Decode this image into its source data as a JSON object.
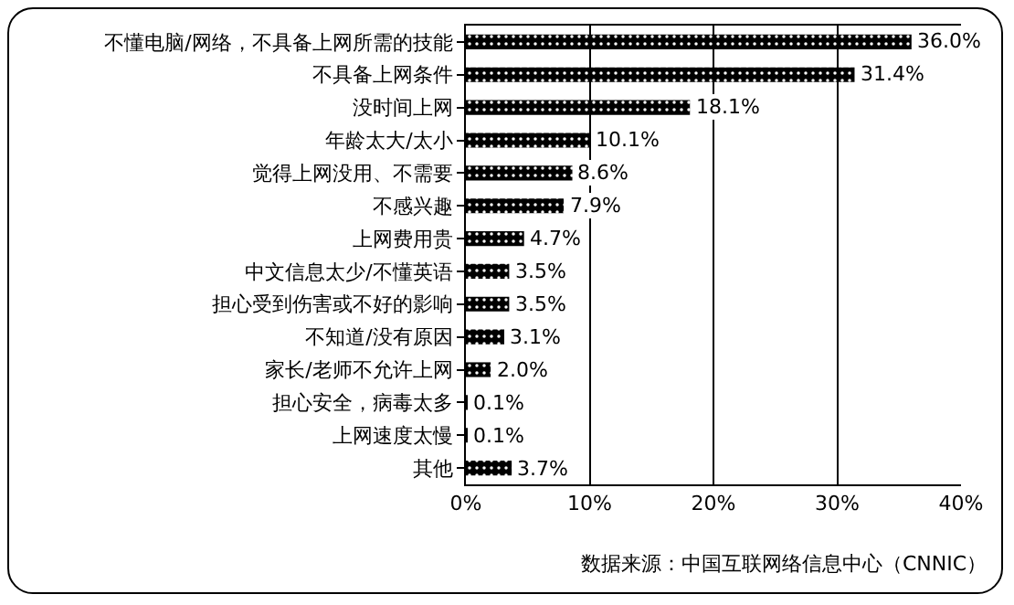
{
  "chart_data": {
    "type": "bar",
    "orientation": "horizontal",
    "categories": [
      "不懂电脑/网络，不具备上网所需的技能",
      "不具备上网条件",
      "没时间上网",
      "年龄太大/太小",
      "觉得上网没用、不需要",
      "不感兴趣",
      "上网费用贵",
      "中文信息太少/不懂英语",
      "担心受到伤害或不好的影响",
      "不知道/没有原因",
      "家长/老师不允许上网",
      "担心安全，病毒太多",
      "上网速度太慢",
      "其他"
    ],
    "values": [
      36.0,
      31.4,
      18.1,
      10.1,
      8.6,
      7.9,
      4.7,
      3.5,
      3.5,
      3.1,
      2.0,
      0.1,
      0.1,
      3.7
    ],
    "value_labels": [
      "36.0%",
      "31.4%",
      "18.1%",
      "10.1%",
      "8.6%",
      "7.9%",
      "4.7%",
      "3.5%",
      "3.5%",
      "3.1%",
      "2.0%",
      "0.1%",
      "0.1%",
      "3.7%"
    ],
    "color": "#000000",
    "xlim": [
      0,
      40
    ],
    "xticks": [
      {
        "value": 0,
        "label": "0%"
      },
      {
        "value": 10,
        "label": "10%"
      },
      {
        "value": 20,
        "label": "20%"
      },
      {
        "value": 30,
        "label": "30%"
      },
      {
        "value": 40,
        "label": "40%"
      }
    ],
    "grid": "x",
    "annotations": [
      "数据来源：中国互联网络信息中心（CNNIC）"
    ]
  }
}
